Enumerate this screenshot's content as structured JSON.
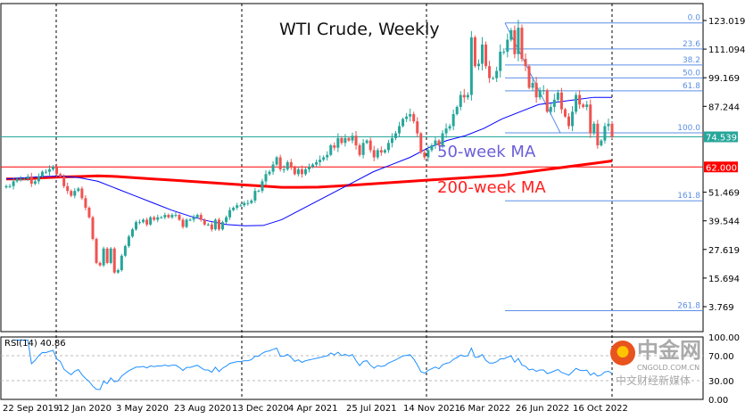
{
  "chart_data": {
    "type": "candlestick",
    "title": "WTI Crude, Weekly",
    "annotations": {
      "ma50": "50-week MA",
      "ma200": "200-week MA"
    },
    "colors": {
      "up": "#26a69a",
      "down": "#ef5350",
      "ma50": "#0000ff",
      "ma200": "#ff0000",
      "fib": "#5b8fe6",
      "current_price": "#26a69a",
      "rsi": "#1e90ff"
    },
    "weekly_closes": [
      54,
      54,
      56,
      57,
      57,
      57,
      58,
      55,
      56,
      58,
      60,
      60,
      61,
      62,
      59,
      58,
      54,
      52,
      50,
      52,
      53,
      49,
      45,
      41,
      32,
      22,
      21,
      28,
      22,
      28,
      18,
      19,
      25,
      29,
      33,
      36,
      39,
      39,
      40,
      38,
      41,
      40,
      41,
      41,
      42,
      41,
      42,
      42,
      40,
      37,
      40,
      40,
      41,
      42,
      40,
      38,
      38,
      36,
      40,
      36,
      39,
      41,
      44,
      45,
      46,
      46,
      47,
      47,
      48,
      52,
      52,
      56,
      59,
      60,
      63,
      66,
      61,
      61,
      64,
      62,
      59,
      61,
      59,
      61,
      62,
      63,
      64,
      65,
      66,
      67,
      71,
      70,
      74,
      72,
      74,
      73,
      75,
      71,
      67,
      72,
      73,
      69,
      66,
      69,
      68,
      69,
      72,
      74,
      76,
      79,
      82,
      83,
      84,
      81,
      76,
      68,
      66,
      69,
      71,
      73,
      71,
      76,
      78,
      79,
      84,
      87,
      92,
      91,
      92,
      116,
      104,
      105,
      113,
      104,
      99,
      99,
      102,
      110,
      110,
      115,
      119,
      109,
      120,
      107,
      104,
      95,
      97,
      91,
      94,
      94,
      85,
      87,
      90,
      93,
      86,
      83,
      79,
      85,
      92,
      88,
      87,
      88,
      76,
      80,
      71,
      73,
      79,
      80,
      74.539
    ],
    "ma50_approx": [
      57,
      57.5,
      58,
      58.2,
      57.5,
      56,
      53,
      50,
      47,
      44,
      41.5,
      39.5,
      38,
      37.5,
      37.6,
      40,
      44,
      48,
      52,
      56,
      60,
      63,
      66,
      70,
      73,
      75,
      78,
      82,
      85,
      88,
      89,
      90,
      91,
      91
    ],
    "ma200_approx": [
      57,
      57,
      57.5,
      57.8,
      58,
      58.3,
      58,
      57.5,
      57,
      56.5,
      56,
      55.5,
      55,
      54.5,
      54,
      53.5,
      53.5,
      53.6,
      54,
      54.5,
      55,
      55.5,
      56,
      56.5,
      57,
      57.5,
      58,
      58.5,
      59.5,
      60.5,
      61.5,
      62.5,
      63.5,
      64.5
    ],
    "price_axis": {
      "ticks": [
        "123.019",
        "111.094",
        "99.169",
        "87.244",
        "51.469",
        "39.544",
        "27.619",
        "15.694",
        "3.769"
      ],
      "range": [
        3.769,
        123.019
      ]
    },
    "current_price": "74.539",
    "level_line": "62.000",
    "fibonacci": {
      "high": 122,
      "low": 76.2,
      "levels": [
        "0.0",
        "23.6",
        "38.2",
        "50.0",
        "61.8",
        "100.0",
        "161.8",
        "261.8"
      ]
    },
    "x_ticks": [
      "22 Sep 2019",
      "12 Jan 2020",
      "3 May 2020",
      "23 Aug 2020",
      "13 Dec 2020",
      "4 Apr 2021",
      "25 Jul 2021",
      "14 Nov 2021",
      "6 Mar 2022",
      "26 Jun 2022",
      "16 Oct 2022"
    ],
    "rsi": {
      "label": "RSI(14) 40.86",
      "ticks": [
        "100.00",
        "70.00",
        "30.00",
        "0.00"
      ],
      "levels": [
        70,
        30
      ]
    }
  },
  "watermark": {
    "brand": "中金网",
    "domain": "CNGOLD.COM.CN",
    "tagline": "中文财经新媒体"
  }
}
